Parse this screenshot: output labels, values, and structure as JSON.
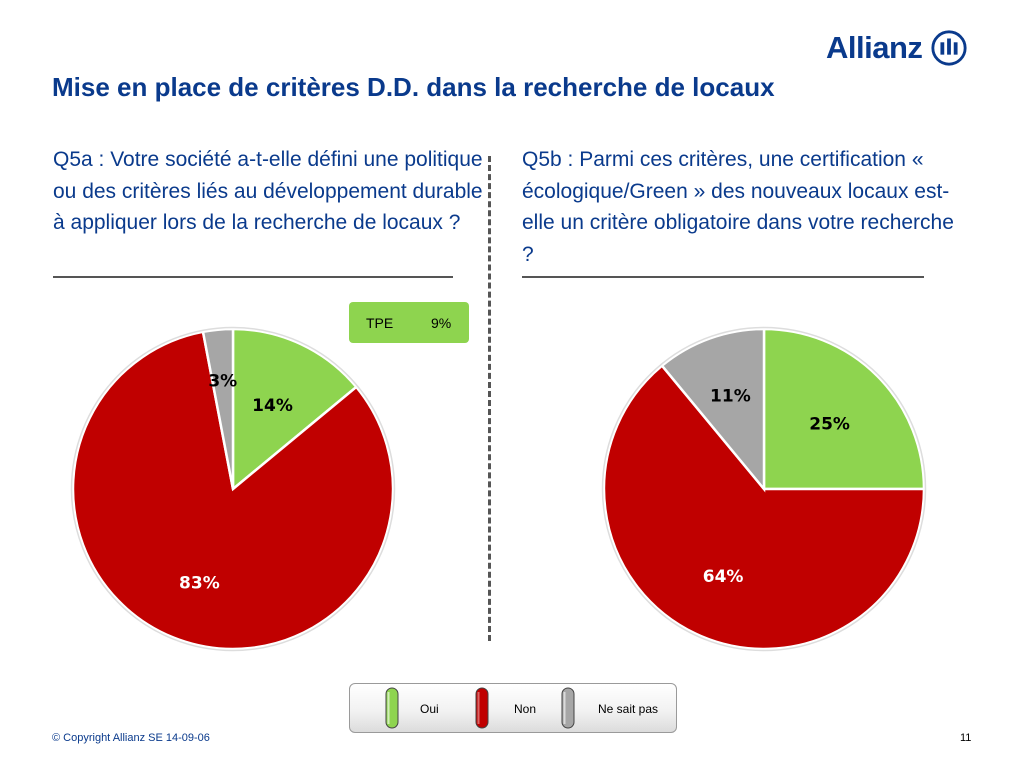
{
  "brand": {
    "name": "Allianz",
    "color": "#0a3a8c"
  },
  "title": "Mise en place de critères D.D. dans la recherche de locaux",
  "colors": {
    "oui": "#8ed44f",
    "non": "#c00000",
    "nsp": "#a6a6a6"
  },
  "chart_data": [
    {
      "type": "pie",
      "question": "Q5a : Votre société a-t-elle défini une politique ou des critères liés au développement durable à appliquer lors de la recherche de locaux ?",
      "categories": [
        "Oui",
        "Non",
        "Ne sait pas"
      ],
      "values": [
        14,
        83,
        3
      ],
      "labels": [
        "14%",
        "83%",
        "3%"
      ],
      "callout": {
        "label": "TPE",
        "value": "9%"
      }
    },
    {
      "type": "pie",
      "question": "Q5b : Parmi ces critères, une certification « écologique/Green » des nouveaux locaux est-elle un critère obligatoire dans votre recherche ?",
      "categories": [
        "Oui",
        "Non",
        "Ne sait pas"
      ],
      "values": [
        25,
        64,
        11
      ],
      "labels": [
        "25%",
        "64%",
        "11%"
      ]
    }
  ],
  "legend": [
    "Oui",
    "Non",
    "Ne sait pas"
  ],
  "footer": {
    "copyright": "© Copyright Allianz SE 14-09-06",
    "page": "11"
  }
}
